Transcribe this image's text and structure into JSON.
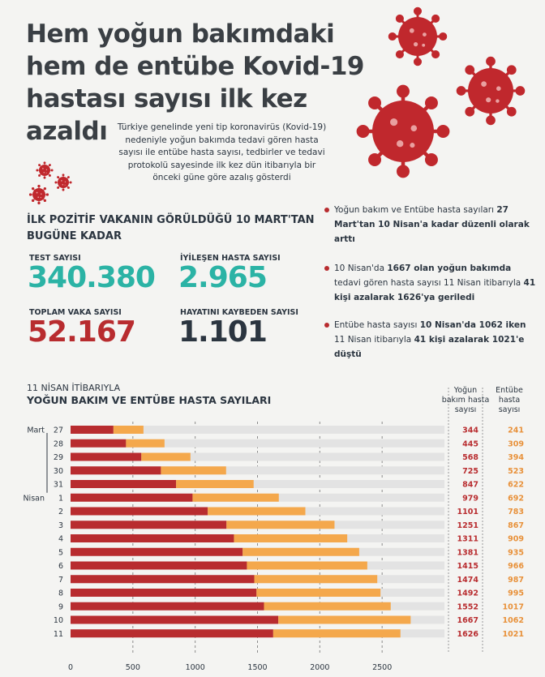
{
  "header": {
    "title_lines": [
      "Hem yoğun bakımdaki",
      "hem de entübe Kovid-19",
      "hastası sayısı ilk kez",
      "azaldı"
    ],
    "intro_lines": [
      "Türkiye genelinde yeni tip koronavirüs (Kovid-19)",
      "nedeniyle yoğun bakımda tedavi gören hasta",
      "sayısı ile entübe hasta sayısı, tedbirler ve tedavi",
      "protokolü sayesinde ilk kez dün itibarıyla bir",
      "önceki güne göre azalış gösterdi"
    ]
  },
  "stats": {
    "heading_lines": [
      "İLK POZİTİF VAKANIN GÖRÜLDÜĞÜ 10 MART'TAN",
      "BUGÜNE KADAR"
    ],
    "items": [
      {
        "label": "TEST SAYISI",
        "value": "340.380",
        "color": "#2bb3a5"
      },
      {
        "label": "İYİLEŞEN HASTA SAYISI",
        "value": "2.965",
        "color": "#2bb3a5"
      },
      {
        "label": "TOPLAM VAKA SAYISI",
        "value": "52.167",
        "color": "#b82c2f"
      },
      {
        "label": "HAYATINI KAYBEDEN SAYISI",
        "value": "1.101",
        "color": "#2b3540"
      }
    ]
  },
  "bullets": [
    [
      "Yoğun bakım ve Entübe hasta sayıları ",
      "27 Mart'tan 10 Nisan'a kadar düzenli olarak arttı"
    ],
    [
      "10 Nisan'da ",
      "1667 olan yoğun bakımda",
      " tedavi gören hasta sayısı 11 Nisan itibarıyla ",
      "41 kişi azalarak 1626'ya geriledi"
    ],
    [
      "Entübe hasta sayısı ",
      "10 Nisan'da 1062 iken",
      " 11 Nisan itibarıyla ",
      "41 kişi azalarak 1021'e düştü"
    ]
  ],
  "chart_data": {
    "type": "stacked_hbar",
    "subtitle": "11 NİSAN İTİBARIYLA",
    "title": "YOĞUN BAKIM VE ENTÜBE HASTA SAYILARI",
    "categories": [
      "27",
      "28",
      "29",
      "30",
      "31",
      "1",
      "2",
      "3",
      "4",
      "5",
      "6",
      "7",
      "8",
      "9",
      "10",
      "11"
    ],
    "months": [
      "Mart",
      null,
      null,
      null,
      null,
      "Nisan",
      null,
      null,
      null,
      null,
      null,
      null,
      null,
      null,
      null,
      null
    ],
    "series": [
      {
        "name": "Yoğun bakım hasta sayısı",
        "color": "#b82c2f",
        "values": [
          344,
          445,
          568,
          725,
          847,
          979,
          1101,
          1251,
          1311,
          1381,
          1415,
          1474,
          1492,
          1552,
          1667,
          1626
        ]
      },
      {
        "name": "Entübe hasta sayısı",
        "color": "#f4a84c",
        "values": [
          241,
          309,
          394,
          523,
          622,
          692,
          783,
          867,
          909,
          935,
          966,
          987,
          995,
          1017,
          1062,
          1021
        ]
      }
    ],
    "xlim": [
      0,
      3000
    ],
    "xticks": [
      0,
      500,
      1000,
      1500,
      2000,
      2500
    ],
    "grid": true
  }
}
